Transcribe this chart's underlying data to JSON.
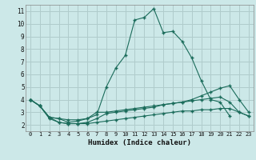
{
  "xlabel": "Humidex (Indice chaleur)",
  "background_color": "#cce8e8",
  "grid_color": "#b0cccc",
  "line_color": "#1a6b5a",
  "xlim": [
    -0.5,
    23.5
  ],
  "ylim": [
    1.5,
    11.5
  ],
  "xticks": [
    0,
    1,
    2,
    3,
    4,
    5,
    6,
    7,
    8,
    9,
    10,
    11,
    12,
    13,
    14,
    15,
    16,
    17,
    18,
    19,
    20,
    21,
    22,
    23
  ],
  "yticks": [
    2,
    3,
    4,
    5,
    6,
    7,
    8,
    9,
    10,
    11
  ],
  "series": [
    [
      4.0,
      3.5,
      2.6,
      2.2,
      2.1,
      2.1,
      2.2,
      2.5,
      2.9,
      3.0,
      3.1,
      3.2,
      3.3,
      3.4,
      3.6,
      3.7,
      3.8,
      4.0,
      4.3,
      4.6,
      4.9,
      5.1,
      4.0,
      3.0
    ],
    [
      4.0,
      3.5,
      2.6,
      2.5,
      2.2,
      2.3,
      2.5,
      3.0,
      3.0,
      3.1,
      3.2,
      3.3,
      3.4,
      3.5,
      3.6,
      3.7,
      3.8,
      3.9,
      4.0,
      4.1,
      4.2,
      3.8,
      3.0,
      2.7
    ],
    [
      4.0,
      3.5,
      2.5,
      2.2,
      2.1,
      2.1,
      2.1,
      2.2,
      2.3,
      2.4,
      2.5,
      2.6,
      2.7,
      2.8,
      2.9,
      3.0,
      3.1,
      3.1,
      3.2,
      3.2,
      3.3,
      3.3,
      3.0,
      2.7
    ],
    [
      4.0,
      3.5,
      2.6,
      2.5,
      2.4,
      2.4,
      2.5,
      2.8,
      5.0,
      6.5,
      7.5,
      10.3,
      10.5,
      11.2,
      9.3,
      9.4,
      8.6,
      7.3,
      5.5,
      4.0,
      3.8,
      2.7,
      null,
      null
    ]
  ]
}
